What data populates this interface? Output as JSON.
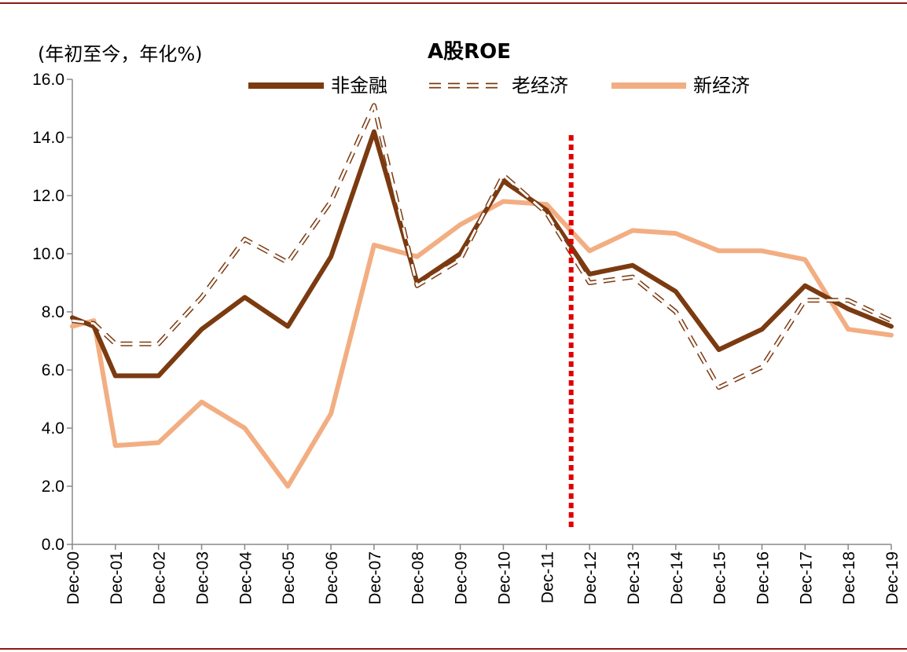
{
  "chart_data": {
    "type": "line",
    "title": "A股ROE",
    "ylabel": "(年初至今，年化%)",
    "xlabel": "",
    "ylim": [
      0,
      16
    ],
    "ytick_values": [
      0,
      2,
      4,
      6,
      8,
      10,
      12,
      14,
      16
    ],
    "ytick_labels": [
      "0.0",
      "2.0",
      "4.0",
      "6.0",
      "8.0",
      "10.0",
      "12.0",
      "14.0",
      "16.0"
    ],
    "categories": [
      "Dec-00",
      "Dec-01",
      "Dec-02",
      "Dec-03",
      "Dec-04",
      "Dec-05",
      "Dec-06",
      "Dec-07",
      "Dec-08",
      "Dec-09",
      "Dec-10",
      "Dec-11",
      "Dec-12",
      "Dec-13",
      "Dec-14",
      "Dec-15",
      "Dec-16",
      "Dec-17",
      "Dec-18",
      "Dec-19"
    ],
    "series": [
      {
        "name": "非金融",
        "color": "#7B3A10",
        "style": "solid",
        "x": [
          0,
          0.5,
          1,
          2,
          3,
          4,
          5,
          6,
          7,
          8,
          9,
          10,
          11,
          12,
          13,
          14,
          15,
          16,
          17,
          18,
          19
        ],
        "values": [
          7.8,
          7.5,
          5.8,
          5.8,
          7.4,
          8.5,
          7.5,
          9.9,
          14.2,
          9.0,
          10.0,
          12.5,
          11.5,
          9.3,
          9.6,
          8.7,
          6.7,
          7.4,
          8.9,
          8.1,
          7.5
        ]
      },
      {
        "name": "老经济",
        "color": "#7B3A10",
        "style": "dashed",
        "x": [
          0,
          0.5,
          1,
          2,
          3,
          4,
          5,
          6,
          7,
          8,
          9,
          10,
          11,
          12,
          13,
          14,
          15,
          16,
          17,
          18,
          19
        ],
        "values": [
          7.7,
          7.6,
          6.9,
          6.9,
          8.5,
          10.5,
          9.7,
          11.8,
          15.1,
          8.9,
          9.8,
          12.7,
          11.4,
          9.0,
          9.2,
          8.0,
          5.4,
          6.1,
          8.4,
          8.4,
          7.7
        ]
      },
      {
        "name": "新经济",
        "color": "#F2AE82",
        "style": "solid",
        "x": [
          0,
          0.5,
          1,
          2,
          3,
          4,
          5,
          6,
          7,
          8,
          9,
          10,
          11,
          12,
          13,
          14,
          15,
          16,
          17,
          18,
          19
        ],
        "values": [
          7.5,
          7.7,
          3.4,
          3.5,
          4.9,
          4.0,
          2.0,
          4.5,
          10.3,
          9.9,
          11.0,
          11.8,
          11.7,
          10.1,
          10.8,
          10.7,
          10.1,
          10.1,
          9.8,
          7.4,
          7.2
        ]
      }
    ],
    "annotations": [
      {
        "type": "vertical-line",
        "x": 11.5,
        "color": "#E00000",
        "style": "dotted"
      }
    ],
    "legend": {
      "placement": "top",
      "entries": [
        "非金融",
        "老经济",
        "新经济"
      ]
    },
    "grid": false
  }
}
